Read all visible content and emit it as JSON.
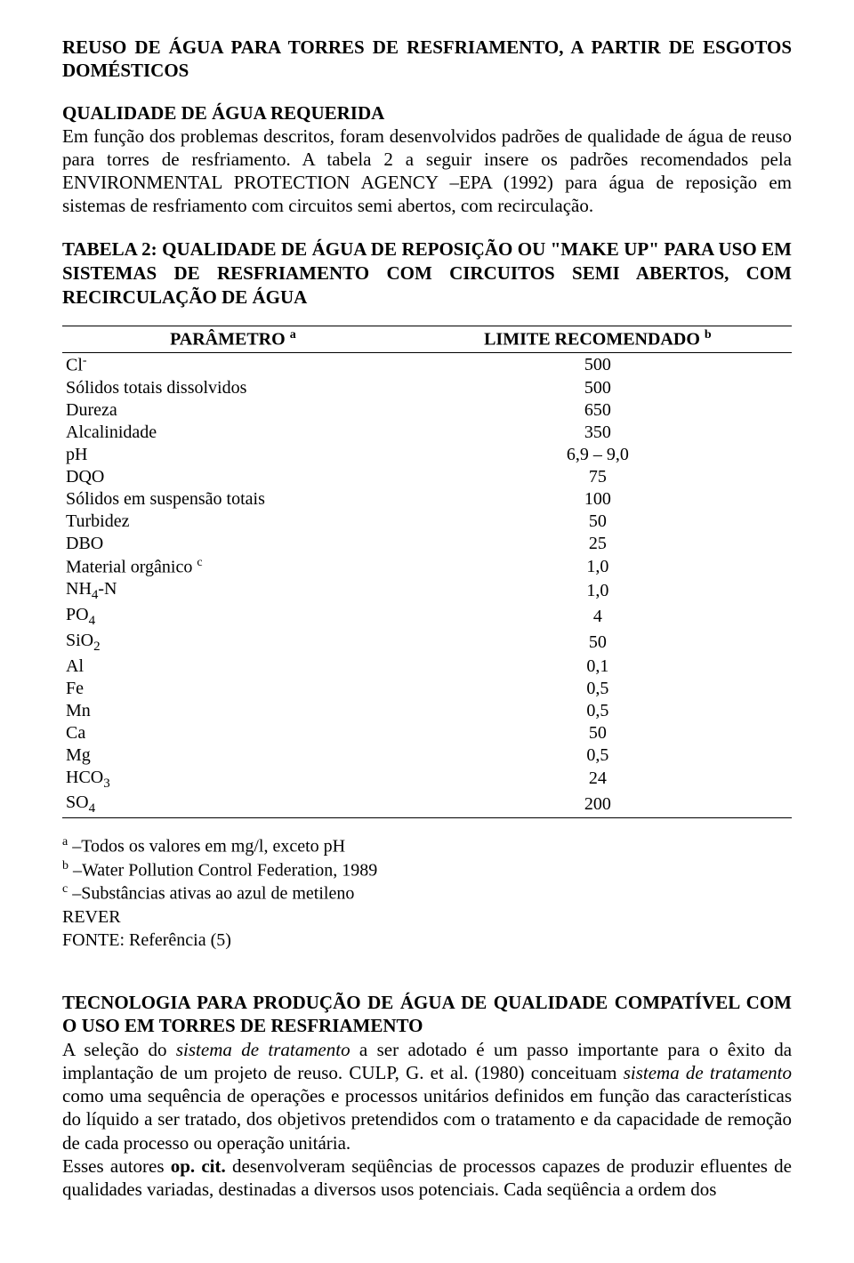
{
  "title1": "REUSO DE ÁGUA PARA TORRES DE RESFRIAMENTO, A PARTIR DE ESGOTOS DOMÉSTICOS",
  "section1_title": "QUALIDADE DE ÁGUA REQUERIDA",
  "section1_body": "Em função dos problemas descritos, foram desenvolvidos padrões de qualidade de água de reuso para torres de resfriamento. A tabela 2 a seguir insere os padrões recomendados pela ENVIRONMENTAL PROTECTION AGENCY –EPA (1992) para água de reposição em sistemas de resfriamento com circuitos semi abertos, com recirculação.",
  "table_title": "TABELA 2: QUALIDADE DE ÁGUA DE REPOSIÇÃO OU \"MAKE UP\" PARA USO EM SISTEMAS DE RESFRIAMENTO COM CIRCUITOS SEMI ABERTOS, COM RECIRCULAÇÃO DE ÁGUA",
  "table": {
    "col1_header": "PARÂMETRO",
    "col1_sup": "a",
    "col2_header": "LIMITE RECOMENDADO",
    "col2_sup": "b",
    "rows": [
      {
        "p": "Cl",
        "sup": "-",
        "v": "500"
      },
      {
        "p": "Sólidos totais dissolvidos",
        "v": "500"
      },
      {
        "p": "Dureza",
        "v": "650"
      },
      {
        "p": "Alcalinidade",
        "v": "350"
      },
      {
        "p": "pH",
        "v": "6,9 – 9,0"
      },
      {
        "p": "DQO",
        "v": "75"
      },
      {
        "p": "Sólidos em suspensão totais",
        "v": "100"
      },
      {
        "p": "Turbidez",
        "v": "50"
      },
      {
        "p": "DBO",
        "v": "25"
      },
      {
        "p": "Material orgânico",
        "sup_after": "c",
        "v": "1,0"
      },
      {
        "p": "NH",
        "sub": "4",
        "post": "-N",
        "v": "1,0"
      },
      {
        "p": "PO",
        "sub": "4",
        "v": "4"
      },
      {
        "p": "SiO",
        "sub": "2",
        "v": "50"
      },
      {
        "p": "Al",
        "v": "0,1"
      },
      {
        "p": "Fe",
        "v": "0,5"
      },
      {
        "p": "Mn",
        "v": "0,5"
      },
      {
        "p": "Ca",
        "v": "50"
      },
      {
        "p": "Mg",
        "v": "0,5"
      },
      {
        "p": "HCO",
        "sub": "3",
        "v": "24"
      },
      {
        "p": "SO",
        "sub": "4",
        "v": "200"
      }
    ]
  },
  "notes": {
    "a_sup": "a",
    "a_text": " –Todos os valores em mg/l, exceto pH",
    "b_sup": "b",
    "b_text": " –Water Pollution Control Federation, 1989",
    "c_sup": "c",
    "c_text": " –Substâncias ativas ao azul de metileno",
    "rever": "REVER",
    "fonte": "FONTE: Referência (5)"
  },
  "tech_title": "TECNOLOGIA PARA PRODUÇÃO DE ÁGUA DE QUALIDADE COMPATÍVEL COM O USO EM TORRES DE RESFRIAMENTO",
  "tech_body_1a": "A seleção do ",
  "tech_body_1b_italic": "sistema de tratamento",
  "tech_body_1c": " a ser adotado é um passo importante para o êxito da implantação de um projeto de reuso. CULP, G. et al. (1980) conceituam ",
  "tech_body_1d_italic": "sistema de tratamento",
  "tech_body_1e": " como uma sequência de operações e processos unitários definidos em função das características do líquido a ser tratado, dos objetivos pretendidos com o tratamento e da capacidade de remoção de cada processo ou operação unitária.",
  "tech_body_2a": "Esses autores ",
  "tech_body_2b_bold": "op. cit.",
  "tech_body_2c": " desenvolveram seqüências de processos capazes de produzir efluentes de qualidades variadas, destinadas a diversos usos potenciais. Cada seqüência a ordem dos"
}
